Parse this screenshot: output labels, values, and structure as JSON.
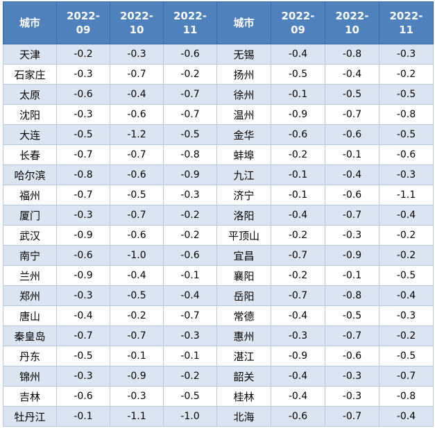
{
  "header": {
    "city_label": "城市",
    "months": [
      {
        "year": "2022-",
        "month": "09"
      },
      {
        "year": "2022-",
        "month": "10"
      },
      {
        "year": "2022-",
        "month": "11"
      }
    ]
  },
  "rows": [
    {
      "left": {
        "city": "天津",
        "v": [
          "-0.2",
          "-0.3",
          "-0.6"
        ]
      },
      "right": {
        "city": "无锡",
        "v": [
          "-0.4",
          "-0.8",
          "-0.3"
        ]
      }
    },
    {
      "left": {
        "city": "石家庄",
        "v": [
          "-0.3",
          "-0.7",
          "-0.2"
        ]
      },
      "right": {
        "city": "扬州",
        "v": [
          "-0.5",
          "-0.4",
          "-0.2"
        ]
      }
    },
    {
      "left": {
        "city": "太原",
        "v": [
          "-0.6",
          "-0.4",
          "-0.7"
        ]
      },
      "right": {
        "city": "徐州",
        "v": [
          "-0.1",
          "-0.5",
          "-0.5"
        ]
      }
    },
    {
      "left": {
        "city": "沈阳",
        "v": [
          "-0.3",
          "-0.6",
          "-0.7"
        ]
      },
      "right": {
        "city": "温州",
        "v": [
          "-0.9",
          "-0.7",
          "-0.8"
        ]
      }
    },
    {
      "left": {
        "city": "大连",
        "v": [
          "-0.5",
          "-1.2",
          "-0.5"
        ]
      },
      "right": {
        "city": "金华",
        "v": [
          "-0.6",
          "-0.6",
          "-0.5"
        ]
      }
    },
    {
      "left": {
        "city": "长春",
        "v": [
          "-0.7",
          "-0.7",
          "-0.8"
        ]
      },
      "right": {
        "city": "蚌埠",
        "v": [
          "-0.2",
          "-0.1",
          "-0.6"
        ]
      }
    },
    {
      "left": {
        "city": "哈尔滨",
        "v": [
          "-0.8",
          "-0.6",
          "-0.9"
        ]
      },
      "right": {
        "city": "九江",
        "v": [
          "-0.1",
          "-0.4",
          "-0.3"
        ]
      }
    },
    {
      "left": {
        "city": "福州",
        "v": [
          "-0.7",
          "-0.5",
          "-0.3"
        ]
      },
      "right": {
        "city": "济宁",
        "v": [
          "-0.1",
          "-0.6",
          "-1.1"
        ]
      }
    },
    {
      "left": {
        "city": "厦门",
        "v": [
          "-0.3",
          "-0.7",
          "-0.2"
        ]
      },
      "right": {
        "city": "洛阳",
        "v": [
          "-0.4",
          "-0.7",
          "-0.4"
        ]
      }
    },
    {
      "left": {
        "city": "武汉",
        "v": [
          "-0.9",
          "-0.6",
          "-0.2"
        ]
      },
      "right": {
        "city": "平顶山",
        "v": [
          "-0.2",
          "-0.3",
          "-0.2"
        ]
      }
    },
    {
      "left": {
        "city": "南宁",
        "v": [
          "-0.6",
          "-1.0",
          "-0.6"
        ]
      },
      "right": {
        "city": "宜昌",
        "v": [
          "-0.7",
          "-0.9",
          "-0.2"
        ]
      }
    },
    {
      "left": {
        "city": "兰州",
        "v": [
          "-0.9",
          "-0.4",
          "-0.1"
        ]
      },
      "right": {
        "city": "襄阳",
        "v": [
          "-0.2",
          "-0.1",
          "-0.5"
        ]
      }
    },
    {
      "left": {
        "city": "郑州",
        "v": [
          "-0.3",
          "-0.5",
          "-0.4"
        ]
      },
      "right": {
        "city": "岳阳",
        "v": [
          "-0.7",
          "-0.8",
          "-0.4"
        ]
      }
    },
    {
      "left": {
        "city": "唐山",
        "v": [
          "-0.4",
          "-0.2",
          "-0.7"
        ]
      },
      "right": {
        "city": "常德",
        "v": [
          "-0.4",
          "-0.5",
          "-0.3"
        ]
      }
    },
    {
      "left": {
        "city": "秦皇岛",
        "v": [
          "-0.7",
          "-0.7",
          "-0.3"
        ]
      },
      "right": {
        "city": "惠州",
        "v": [
          "-0.3",
          "-0.7",
          "-0.2"
        ]
      }
    },
    {
      "left": {
        "city": "丹东",
        "v": [
          "-0.5",
          "-0.1",
          "-0.1"
        ]
      },
      "right": {
        "city": "湛江",
        "v": [
          "-0.9",
          "-0.6",
          "-0.5"
        ]
      }
    },
    {
      "left": {
        "city": "锦州",
        "v": [
          "-0.3",
          "-0.9",
          "-0.2"
        ]
      },
      "right": {
        "city": "韶关",
        "v": [
          "-0.4",
          "-0.3",
          "-0.7"
        ]
      }
    },
    {
      "left": {
        "city": "吉林",
        "v": [
          "-0.6",
          "-0.3",
          "-0.5"
        ]
      },
      "right": {
        "city": "桂林",
        "v": [
          "-0.4",
          "-0.3",
          "-0.8"
        ]
      }
    },
    {
      "left": {
        "city": "牡丹江",
        "v": [
          "-0.1",
          "-1.1",
          "-1.0"
        ]
      },
      "right": {
        "city": "北海",
        "v": [
          "-0.6",
          "-0.7",
          "-0.4"
        ]
      }
    }
  ]
}
